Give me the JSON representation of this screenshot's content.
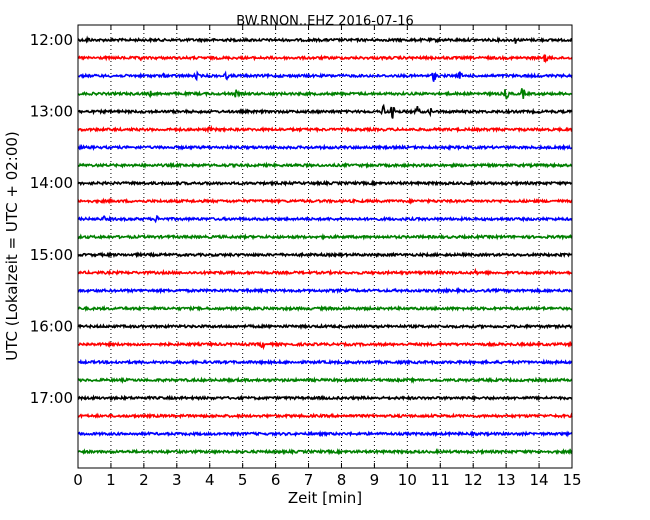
{
  "chart_data": {
    "type": "line",
    "title": "BW.RNON..EHZ 2016-07-16",
    "xlabel": "Zeit  [min]",
    "ylabel": "UTC (Lokalzeit = UTC + 02:00)",
    "xlim": [
      0,
      15
    ],
    "x_ticks": [
      "0",
      "1",
      "2",
      "3",
      "4",
      "5",
      "6",
      "7",
      "8",
      "9",
      "10",
      "11",
      "12",
      "13",
      "14",
      "15"
    ],
    "y_ticks": [
      "12:00",
      "13:00",
      "14:00",
      "15:00",
      "16:00",
      "17:00"
    ],
    "grid": "vertical dotted at each minute",
    "trace_interval_min": 15,
    "color_cycle": [
      "#000000",
      "#ff0000",
      "#0000ff",
      "#008000"
    ],
    "traces": [
      {
        "start": "12:00",
        "events": [
          {
            "t": 0.3,
            "amp": 3
          },
          {
            "t": 13.3,
            "amp": 4
          },
          {
            "t": 10.9,
            "amp": 2
          }
        ]
      },
      {
        "start": "12:15",
        "events": [
          {
            "t": 1.9,
            "amp": 3
          },
          {
            "t": 14.2,
            "amp": 5
          }
        ]
      },
      {
        "start": "12:30",
        "events": [
          {
            "t": 3.6,
            "amp": 4
          },
          {
            "t": 4.5,
            "amp": 4
          },
          {
            "t": 10.8,
            "amp": 6
          },
          {
            "t": 11.6,
            "amp": 4
          },
          {
            "t": 2.6,
            "amp": 2
          }
        ]
      },
      {
        "start": "12:45",
        "events": [
          {
            "t": 2.2,
            "amp": 3
          },
          {
            "t": 4.8,
            "amp": 4
          },
          {
            "t": 13.0,
            "amp": 6
          },
          {
            "t": 13.5,
            "amp": 6
          }
        ]
      },
      {
        "start": "13:00",
        "events": [
          {
            "t": 9.3,
            "amp": 9
          },
          {
            "t": 9.55,
            "amp": 7
          },
          {
            "t": 10.3,
            "amp": 6
          },
          {
            "t": 10.7,
            "amp": 4
          }
        ]
      },
      {
        "start": "13:15",
        "events": [
          {
            "t": 4.0,
            "amp": 3
          }
        ]
      },
      {
        "start": "13:30",
        "events": []
      },
      {
        "start": "13:45",
        "events": []
      },
      {
        "start": "14:00",
        "events": [
          {
            "t": 2.6,
            "amp": 2
          },
          {
            "t": 4.0,
            "amp": 2
          }
        ]
      },
      {
        "start": "14:15",
        "events": []
      },
      {
        "start": "14:30",
        "events": [
          {
            "t": 0.8,
            "amp": 3
          },
          {
            "t": 2.4,
            "amp": 4
          }
        ]
      },
      {
        "start": "14:45",
        "events": []
      },
      {
        "start": "15:00",
        "events": []
      },
      {
        "start": "15:15",
        "events": [
          {
            "t": 4.2,
            "amp": 3
          },
          {
            "t": 12.1,
            "amp": 3
          }
        ]
      },
      {
        "start": "15:30",
        "events": []
      },
      {
        "start": "15:45",
        "events": []
      },
      {
        "start": "16:00",
        "events": []
      },
      {
        "start": "16:15",
        "events": [
          {
            "t": 5.6,
            "amp": 4
          }
        ]
      },
      {
        "start": "16:30",
        "events": [
          {
            "t": 1.2,
            "amp": 2
          }
        ]
      },
      {
        "start": "16:45",
        "events": []
      },
      {
        "start": "17:00",
        "events": []
      },
      {
        "start": "17:15",
        "events": []
      },
      {
        "start": "17:30",
        "events": []
      },
      {
        "start": "17:45",
        "events": []
      }
    ]
  }
}
